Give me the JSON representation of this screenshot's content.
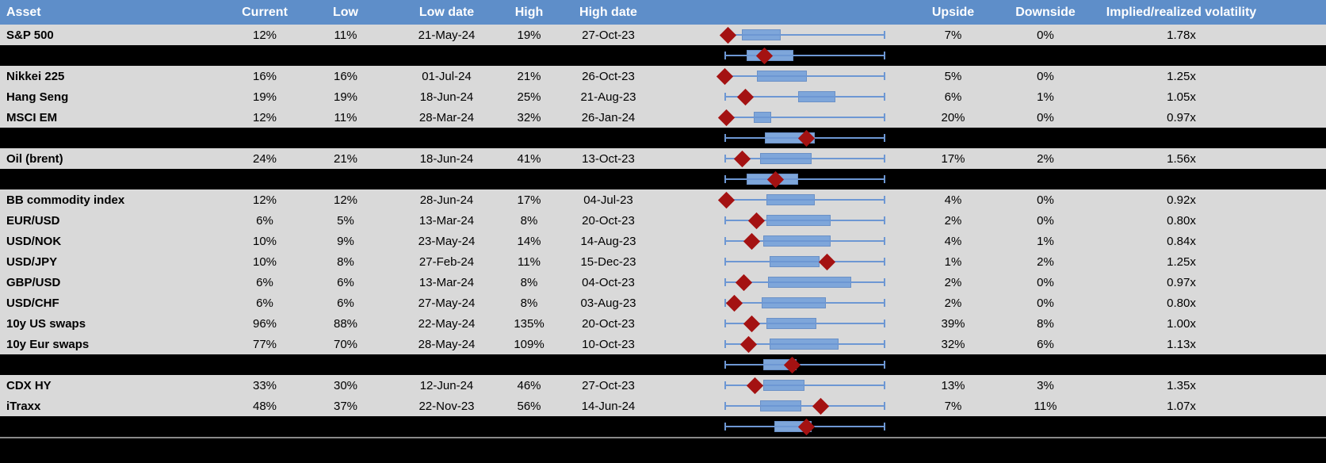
{
  "colors": {
    "header_bg": "#5e8ec9",
    "header_text": "#ffffff",
    "row_bg": "#d9d9d9",
    "separator_bg": "#000000",
    "box_fill": "#7ea6da",
    "whisker": "#6d97d3",
    "marker": "#a41212",
    "bottom_rule": "#8a8a8a"
  },
  "columns": [
    {
      "label": "Asset"
    },
    {
      "label": "Current"
    },
    {
      "label": "Low"
    },
    {
      "label": "Low date"
    },
    {
      "label": "High"
    },
    {
      "label": "High date"
    },
    {
      "label": ""
    },
    {
      "label": "Upside"
    },
    {
      "label": "Downside"
    },
    {
      "label": "Implied/realized volatility"
    }
  ],
  "rows": [
    {
      "type": "data",
      "asset": "S&P 500",
      "current": "12%",
      "low": "11%",
      "low_date": "21-May-24",
      "high": "19%",
      "high_date": "27-Oct-23",
      "upside": "7%",
      "downside": "0%",
      "impl_real": "1.78x",
      "box": {
        "lo": 11,
        "hi": 35,
        "marker": 2
      }
    },
    {
      "type": "sep",
      "box": {
        "lo": 14,
        "hi": 43,
        "marker": 25
      }
    },
    {
      "type": "data",
      "asset": "Nikkei 225",
      "current": "16%",
      "low": "16%",
      "low_date": "01-Jul-24",
      "high": "21%",
      "high_date": "26-Oct-23",
      "upside": "5%",
      "downside": "0%",
      "impl_real": "1.25x",
      "box": {
        "lo": 20,
        "hi": 51,
        "marker": 0
      }
    },
    {
      "type": "data",
      "asset": "Hang Seng",
      "current": "19%",
      "low": "19%",
      "low_date": "18-Jun-24",
      "high": "25%",
      "high_date": "21-Aug-23",
      "upside": "6%",
      "downside": "1%",
      "impl_real": "1.05x",
      "box": {
        "lo": 46,
        "hi": 69,
        "marker": 13
      }
    },
    {
      "type": "data",
      "asset": "MSCI EM",
      "current": "12%",
      "low": "11%",
      "low_date": "28-Mar-24",
      "high": "32%",
      "high_date": "26-Jan-24",
      "upside": "20%",
      "downside": "0%",
      "impl_real": "0.97x",
      "box": {
        "lo": 18,
        "hi": 29,
        "marker": 1
      }
    },
    {
      "type": "sep",
      "box": {
        "lo": 25,
        "hi": 56,
        "marker": 51
      }
    },
    {
      "type": "data",
      "asset": "Oil (brent)",
      "current": "24%",
      "low": "21%",
      "low_date": "18-Jun-24",
      "high": "41%",
      "high_date": "13-Oct-23",
      "upside": "17%",
      "downside": "2%",
      "impl_real": "1.56x",
      "box": {
        "lo": 22,
        "hi": 54,
        "marker": 11
      }
    },
    {
      "type": "sep",
      "box": {
        "lo": 14,
        "hi": 46,
        "marker": 32
      }
    },
    {
      "type": "data",
      "asset": "BB commodity index",
      "current": "12%",
      "low": "12%",
      "low_date": "28-Jun-24",
      "high": "17%",
      "high_date": "04-Jul-23",
      "upside": "4%",
      "downside": "0%",
      "impl_real": "0.92x",
      "box": {
        "lo": 26,
        "hi": 56,
        "marker": 1
      }
    },
    {
      "type": "data",
      "asset": "EUR/USD",
      "current": "6%",
      "low": "5%",
      "low_date": "13-Mar-24",
      "high": "8%",
      "high_date": "20-Oct-23",
      "upside": "2%",
      "downside": "0%",
      "impl_real": "0.80x",
      "box": {
        "lo": 26,
        "hi": 66,
        "marker": 20
      }
    },
    {
      "type": "data",
      "asset": "USD/NOK",
      "current": "10%",
      "low": "9%",
      "low_date": "23-May-24",
      "high": "14%",
      "high_date": "14-Aug-23",
      "upside": "4%",
      "downside": "1%",
      "impl_real": "0.84x",
      "box": {
        "lo": 24,
        "hi": 66,
        "marker": 17
      }
    },
    {
      "type": "data",
      "asset": "USD/JPY",
      "current": "10%",
      "low": "8%",
      "low_date": "27-Feb-24",
      "high": "11%",
      "high_date": "15-Dec-23",
      "upside": "1%",
      "downside": "2%",
      "impl_real": "1.25x",
      "box": {
        "lo": 28,
        "hi": 59,
        "marker": 64
      }
    },
    {
      "type": "data",
      "asset": "GBP/USD",
      "current": "6%",
      "low": "6%",
      "low_date": "13-Mar-24",
      "high": "8%",
      "high_date": "04-Oct-23",
      "upside": "2%",
      "downside": "0%",
      "impl_real": "0.97x",
      "box": {
        "lo": 27,
        "hi": 79,
        "marker": 12
      }
    },
    {
      "type": "data",
      "asset": "USD/CHF",
      "current": "6%",
      "low": "6%",
      "low_date": "27-May-24",
      "high": "8%",
      "high_date": "03-Aug-23",
      "upside": "2%",
      "downside": "0%",
      "impl_real": "0.80x",
      "box": {
        "lo": 23,
        "hi": 63,
        "marker": 6
      }
    },
    {
      "type": "data",
      "asset": "10y US swaps",
      "current": "96%",
      "low": "88%",
      "low_date": "22-May-24",
      "high": "135%",
      "high_date": "20-Oct-23",
      "upside": "39%",
      "downside": "8%",
      "impl_real": "1.00x",
      "box": {
        "lo": 26,
        "hi": 57,
        "marker": 17
      }
    },
    {
      "type": "data",
      "asset": "10y Eur swaps",
      "current": "77%",
      "low": "70%",
      "low_date": "28-May-24",
      "high": "109%",
      "high_date": "10-Oct-23",
      "upside": "32%",
      "downside": "6%",
      "impl_real": "1.13x",
      "box": {
        "lo": 28,
        "hi": 71,
        "marker": 15
      }
    },
    {
      "type": "sep",
      "box": {
        "lo": 24,
        "hi": 45,
        "marker": 42
      }
    },
    {
      "type": "data",
      "asset": "CDX HY",
      "current": "33%",
      "low": "30%",
      "low_date": "12-Jun-24",
      "high": "46%",
      "high_date": "27-Oct-23",
      "upside": "13%",
      "downside": "3%",
      "impl_real": "1.35x",
      "box": {
        "lo": 24,
        "hi": 50,
        "marker": 19
      }
    },
    {
      "type": "data",
      "asset": "iTraxx",
      "current": "48%",
      "low": "37%",
      "low_date": "22-Nov-23",
      "high": "56%",
      "high_date": "14-Jun-24",
      "upside": "7%",
      "downside": "11%",
      "impl_real": "1.07x",
      "box": {
        "lo": 22,
        "hi": 48,
        "marker": 60
      }
    },
    {
      "type": "sep",
      "box": {
        "lo": 31,
        "hi": 54,
        "marker": 51
      }
    },
    {
      "type": "end"
    }
  ],
  "chart_data": {
    "type": "boxplot",
    "orientation": "horizontal",
    "x_scale": "percent of low-to-high volatility range (0 = period low, 100 = period high)",
    "xlim": [
      0,
      100
    ],
    "whiskers": {
      "min": 0,
      "max": 100
    },
    "marker_meaning": "red diamond = current level within low-high range",
    "series": [
      {
        "name": "S&P 500",
        "q1": 11,
        "q3": 35,
        "current": 2
      },
      {
        "name": "",
        "q1": 14,
        "q3": 43,
        "current": 25
      },
      {
        "name": "Nikkei 225",
        "q1": 20,
        "q3": 51,
        "current": 0
      },
      {
        "name": "Hang Seng",
        "q1": 46,
        "q3": 69,
        "current": 13
      },
      {
        "name": "MSCI EM",
        "q1": 18,
        "q3": 29,
        "current": 1
      },
      {
        "name": "",
        "q1": 25,
        "q3": 56,
        "current": 51
      },
      {
        "name": "Oil (brent)",
        "q1": 22,
        "q3": 54,
        "current": 11
      },
      {
        "name": "",
        "q1": 14,
        "q3": 46,
        "current": 32
      },
      {
        "name": "BB commodity index",
        "q1": 26,
        "q3": 56,
        "current": 1
      },
      {
        "name": "EUR/USD",
        "q1": 26,
        "q3": 66,
        "current": 20
      },
      {
        "name": "USD/NOK",
        "q1": 24,
        "q3": 66,
        "current": 17
      },
      {
        "name": "USD/JPY",
        "q1": 28,
        "q3": 59,
        "current": 64
      },
      {
        "name": "GBP/USD",
        "q1": 27,
        "q3": 79,
        "current": 12
      },
      {
        "name": "USD/CHF",
        "q1": 23,
        "q3": 63,
        "current": 6
      },
      {
        "name": "10y US swaps",
        "q1": 26,
        "q3": 57,
        "current": 17
      },
      {
        "name": "10y Eur swaps",
        "q1": 28,
        "q3": 71,
        "current": 15
      },
      {
        "name": "",
        "q1": 24,
        "q3": 45,
        "current": 42
      },
      {
        "name": "CDX HY",
        "q1": 24,
        "q3": 50,
        "current": 19
      },
      {
        "name": "iTraxx",
        "q1": 22,
        "q3": 48,
        "current": 60
      },
      {
        "name": "",
        "q1": 31,
        "q3": 54,
        "current": 51
      }
    ]
  }
}
